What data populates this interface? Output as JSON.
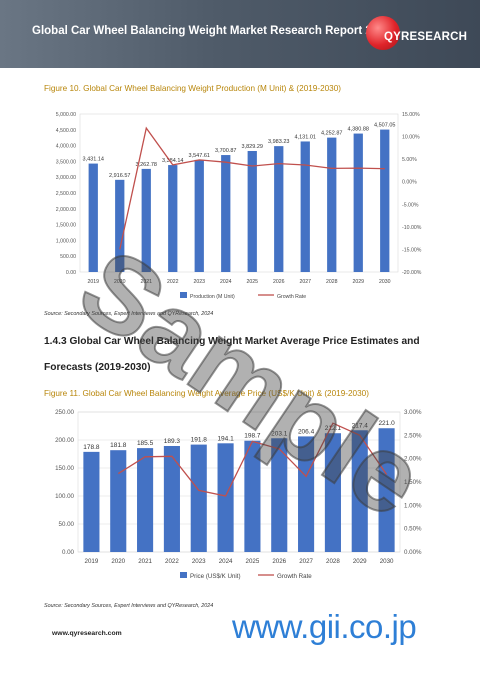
{
  "header": {
    "title": "Global Car Wheel Balancing Weight Market Research Report 2024",
    "logo": "QYRESEARCH"
  },
  "figure10": {
    "title": "Figure 10.   Global Car Wheel Balancing Weight Production (M Unit) & (2019-2030)",
    "source": "Source: Secondary Sources, Expert Interviews and QYResearch, 2024"
  },
  "section": {
    "line1": "1.4.3   Global Car Wheel Balancing Weight Market Average Price Estimates and",
    "line2": "Forecasts (2019-2030)"
  },
  "figure11": {
    "title": "Figure 11.   Global Car Wheel Balancing Weight Average Price (US$/K Unit) & (2019-2030)",
    "source": "Source: Secondary Sources, Expert Interviews and QYResearch, 2024"
  },
  "footer": {
    "website": "www.qyresearch.com",
    "gii": "www.gii.co.jp"
  },
  "watermark": "Sample",
  "chart_data": [
    {
      "type": "bar",
      "categories": [
        "2019",
        "2020",
        "2021",
        "2022",
        "2023",
        "2024",
        "2025",
        "2026",
        "2027",
        "2028",
        "2029",
        "2030"
      ],
      "series": [
        {
          "name": "Production (M Unit)",
          "values": [
            3431.14,
            2916.57,
            3262.78,
            3384.14,
            3547.61,
            3700.87,
            3829.29,
            3983.23,
            4131.01,
            4252.87,
            4380.88,
            4507.05
          ],
          "color": "#4472c4"
        },
        {
          "name": "Growth Rate",
          "type": "line",
          "values": [
            null,
            -15.0,
            11.87,
            3.72,
            4.83,
            4.32,
            3.47,
            4.02,
            3.71,
            2.95,
            3.01,
            2.88
          ],
          "color": "#c0504d"
        }
      ],
      "value_labels": [
        "3,431.14",
        "2,916.57",
        "3,262.78",
        "3,384.14",
        "3,547.61",
        "3,700.87",
        "3,829.29",
        "3,983.23",
        "4,131.01",
        "4,252.87",
        "4,380.88",
        "4,507.05"
      ],
      "ylim": [
        0,
        5000
      ],
      "yticks": [
        "0.00",
        "500.00",
        "1,000.00",
        "1,500.00",
        "2,000.00",
        "2,500.00",
        "3,000.00",
        "3,500.00",
        "4,000.00",
        "4,500.00",
        "5,000.00"
      ],
      "y2lim": [
        -20,
        15
      ],
      "y2ticks": [
        "-20.00%",
        "-15.00%",
        "-10.00%",
        "-5.00%",
        "0.00%",
        "5.00%",
        "10.00%",
        "15.00%"
      ],
      "legend": [
        "Production (M Unit)",
        "Growth Rate"
      ],
      "legend_position": "bottom"
    },
    {
      "type": "bar",
      "categories": [
        "2019",
        "2020",
        "2021",
        "2022",
        "2023",
        "2024",
        "2025",
        "2026",
        "2027",
        "2028",
        "2029",
        "2030"
      ],
      "series": [
        {
          "name": "Price (US$/K Unit)",
          "values": [
            178.8,
            181.8,
            185.5,
            189.3,
            191.8,
            194.1,
            198.7,
            203.1,
            206.4,
            212.1,
            217.4,
            221.0
          ],
          "color": "#4472c4"
        },
        {
          "name": "Growth Rate",
          "type": "line",
          "values": [
            null,
            1.68,
            2.04,
            2.05,
            1.32,
            1.2,
            2.37,
            2.21,
            1.62,
            2.76,
            2.5,
            1.66
          ],
          "color": "#c0504d"
        }
      ],
      "value_labels": [
        "178.8",
        "181.8",
        "185.5",
        "189.3",
        "191.8",
        "194.1",
        "198.7",
        "203.1",
        "206.4",
        "212.1",
        "217.4",
        "221.0"
      ],
      "ylim": [
        0,
        250
      ],
      "yticks": [
        "0.00",
        "50.00",
        "100.00",
        "150.00",
        "200.00",
        "250.00"
      ],
      "y2lim": [
        0,
        3
      ],
      "y2ticks": [
        "0.00%",
        "0.50%",
        "1.00%",
        "1.50%",
        "2.00%",
        "2.50%",
        "3.00%"
      ],
      "legend": [
        "Price (US$/K Unit)",
        "Growth Rate"
      ],
      "legend_position": "bottom"
    }
  ]
}
